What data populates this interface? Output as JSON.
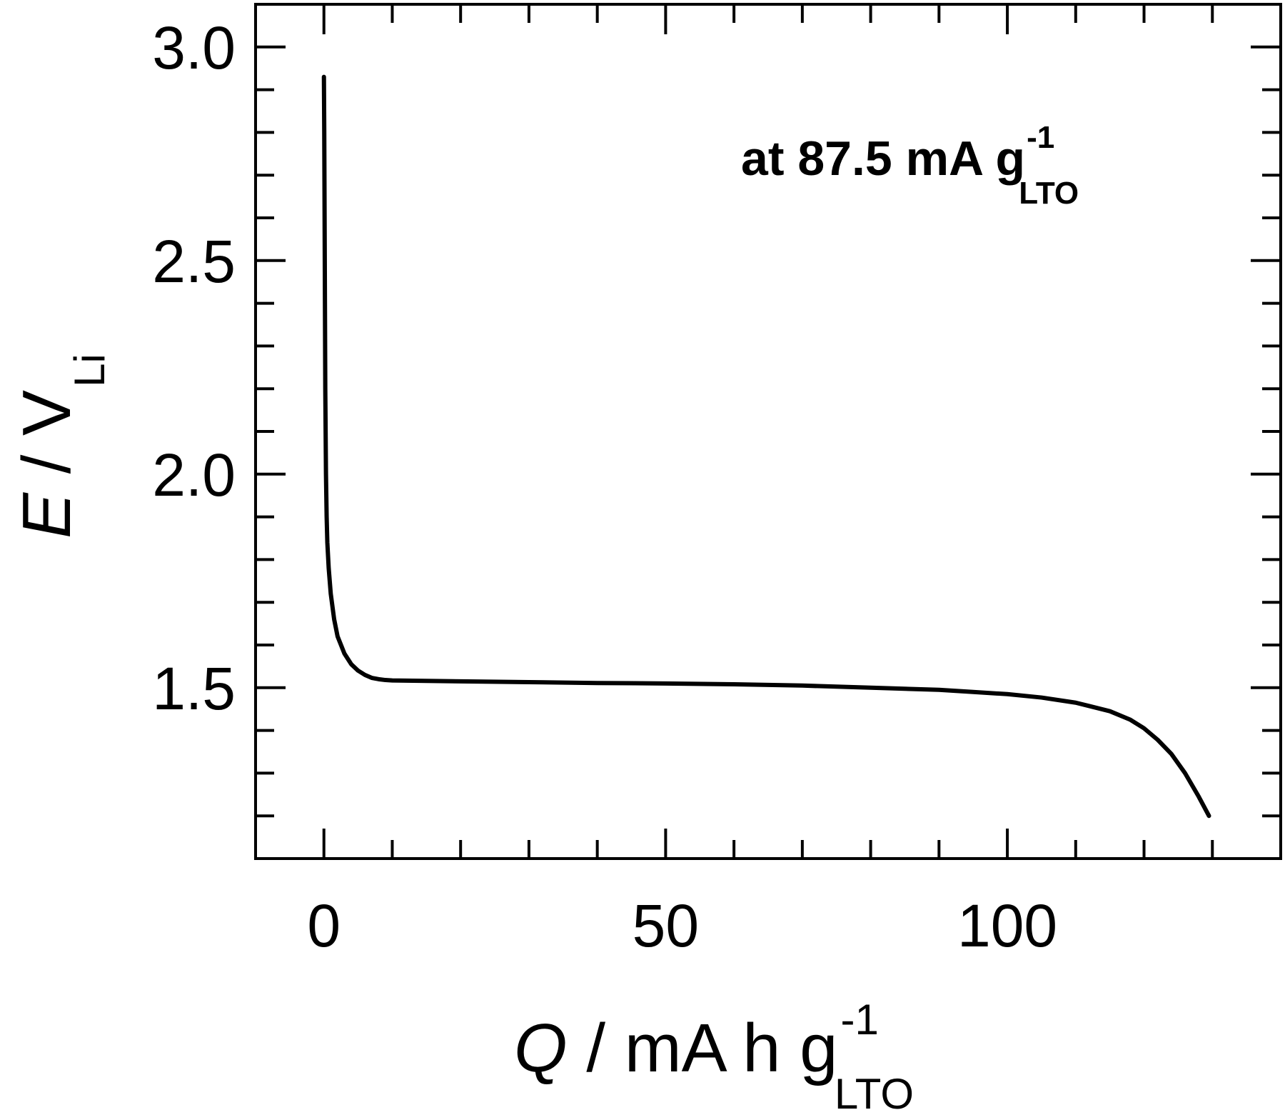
{
  "chart_data": {
    "type": "line",
    "annotation": {
      "prefix": "at 87.5 mA g",
      "sup": "-1",
      "sub": "LTO"
    },
    "xlabel": {
      "var": "Q",
      "rest": " / mA h g",
      "sup": "-1",
      "sub": "LTO"
    },
    "ylabel": {
      "var": "E",
      "rest": " / V",
      "sub": "Li"
    },
    "xlim": [
      -10,
      140
    ],
    "ylim": [
      1.1,
      3.1
    ],
    "x_major_ticks": [
      0,
      50,
      100
    ],
    "x_tick_labels": [
      "0",
      "50",
      "100"
    ],
    "x_minor_step": 10,
    "y_major_ticks": [
      1.5,
      2.0,
      2.5,
      3.0
    ],
    "y_tick_labels": [
      "1.5",
      "2.0",
      "2.5",
      "3.0"
    ],
    "y_minor_step": 0.1,
    "grid": false,
    "series": [
      {
        "color": "#000000",
        "x": [
          0,
          0.05,
          0.1,
          0.15,
          0.2,
          0.3,
          0.4,
          0.5,
          0.7,
          1.0,
          1.5,
          2.0,
          3.0,
          4.0,
          5.0,
          6.0,
          7.0,
          8.0,
          9.0,
          10.0,
          15,
          20,
          30,
          40,
          50,
          60,
          70,
          80,
          90,
          95,
          100,
          105,
          110,
          115,
          118,
          120,
          122,
          124,
          126,
          128,
          129.5
        ],
        "y": [
          2.93,
          2.8,
          2.6,
          2.4,
          2.2,
          2.0,
          1.9,
          1.84,
          1.78,
          1.72,
          1.66,
          1.62,
          1.58,
          1.555,
          1.54,
          1.53,
          1.523,
          1.52,
          1.518,
          1.517,
          1.516,
          1.515,
          1.513,
          1.511,
          1.51,
          1.508,
          1.505,
          1.5,
          1.495,
          1.49,
          1.485,
          1.477,
          1.465,
          1.445,
          1.425,
          1.405,
          1.378,
          1.345,
          1.3,
          1.245,
          1.2
        ]
      }
    ]
  }
}
